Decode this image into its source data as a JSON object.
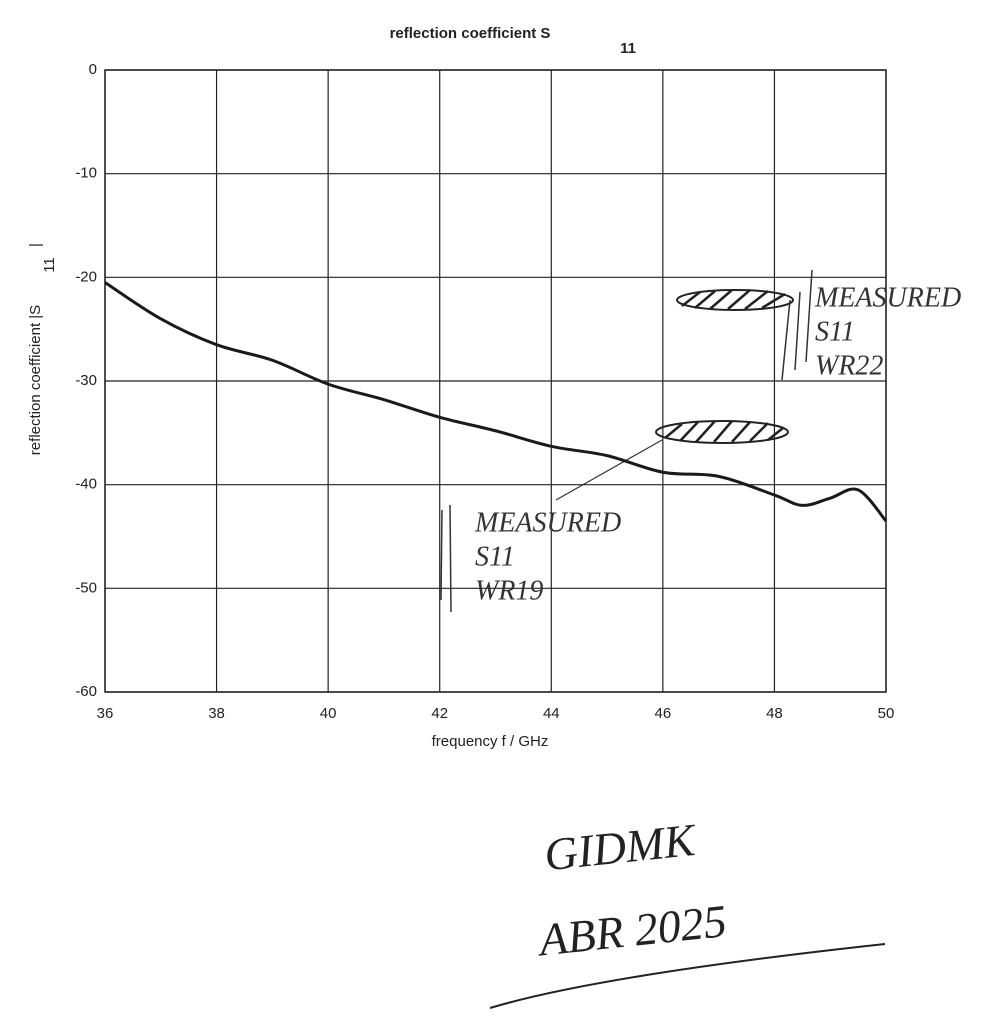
{
  "chart_data": {
    "type": "line",
    "title": "reflection coefficient S",
    "title_subscript": "11",
    "x_label": "frequency f / GHz",
    "y_label": "reflection coefficient |S",
    "y_label_subscript": "11",
    "y_label_end": "|",
    "x": [
      36,
      37,
      38,
      39,
      40,
      41,
      42,
      43,
      44,
      45,
      46,
      47,
      48,
      48.5,
      49,
      49.5,
      50
    ],
    "series": [
      {
        "color": "#1a1a1a",
        "values": [
          -20.5,
          -24,
          -26.5,
          -28,
          -30.3,
          -31.8,
          -33.5,
          -34.8,
          -36.3,
          -37.2,
          -38.8,
          -39.2,
          -41,
          -42,
          -41.3,
          -40.5,
          -43.5
        ]
      }
    ],
    "xlim": [
      36,
      50
    ],
    "ylim": [
      -60,
      0
    ],
    "xticks": [
      36,
      38,
      40,
      42,
      44,
      46,
      48,
      50
    ],
    "yticks": [
      0,
      -10,
      -20,
      -30,
      -40,
      -50,
      -60
    ],
    "grid": true,
    "annotations": [
      {
        "lines": [
          "MEASURED",
          "S11",
          "WR22"
        ]
      },
      {
        "lines": [
          "MEASURED",
          "S11",
          "WR19"
        ]
      }
    ],
    "signature": [
      "GIDMK",
      "ABR 2025"
    ]
  }
}
